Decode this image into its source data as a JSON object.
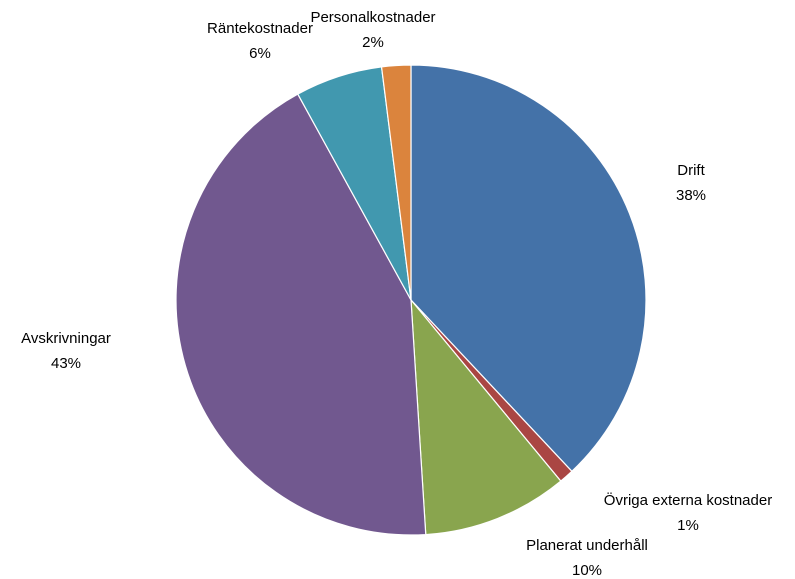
{
  "chart_data": {
    "type": "pie",
    "title": "",
    "legend": "none",
    "start_angle_deg": 0,
    "direction": "clockwise",
    "slices": [
      {
        "name": "Drift",
        "value": 38,
        "percent_label": "38%",
        "color": "#4472A8"
      },
      {
        "name": "Övriga externa kostnader",
        "value": 1,
        "percent_label": "1%",
        "color": "#AA4643"
      },
      {
        "name": "Planerat underhåll",
        "value": 10,
        "percent_label": "10%",
        "color": "#89A54E"
      },
      {
        "name": "Avskrivningar",
        "value": 43,
        "percent_label": "43%",
        "color": "#71588F"
      },
      {
        "name": "Räntekostnader",
        "value": 6,
        "percent_label": "6%",
        "color": "#4198AF"
      },
      {
        "name": "Personalkostnader",
        "value": 2,
        "percent_label": "2%",
        "color": "#DB843D"
      }
    ]
  }
}
